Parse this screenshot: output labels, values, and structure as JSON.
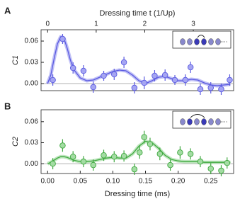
{
  "chart_data": [
    {
      "type": "scatter",
      "panel_label": "A",
      "ylabel": "C1",
      "x2label": "Dressing time t (1/Up)",
      "color": "#5a5ae0",
      "fill": "#a5a5f2",
      "x": [
        0.008,
        0.023,
        0.039,
        0.055,
        0.07,
        0.086,
        0.102,
        0.117,
        0.133,
        0.148,
        0.164,
        0.18,
        0.195,
        0.211,
        0.219,
        0.234,
        0.25,
        0.266,
        0.279
      ],
      "values": [
        0.005,
        0.063,
        0.022,
        0.018,
        -0.005,
        0.011,
        0.013,
        0.03,
        -0.006,
        0.001,
        0.011,
        0.012,
        0.005,
        0.005,
        0.023,
        -0.008,
        -0.006,
        -0.008,
        0.005
      ],
      "errors": [
        0.008,
        0.007,
        0.008,
        0.008,
        0.008,
        0.007,
        0.008,
        0.008,
        0.008,
        0.009,
        0.008,
        0.008,
        0.007,
        0.008,
        0.008,
        0.008,
        0.008,
        0.008,
        0.008
      ],
      "fit_x": [
        0,
        0.005,
        0.01,
        0.015,
        0.02,
        0.025,
        0.03,
        0.035,
        0.04,
        0.05,
        0.06,
        0.07,
        0.08,
        0.09,
        0.1,
        0.11,
        0.12,
        0.13,
        0.14,
        0.15,
        0.16,
        0.17,
        0.18,
        0.19,
        0.2,
        0.21,
        0.22,
        0.23,
        0.24,
        0.25,
        0.26,
        0.27,
        0.28
      ],
      "fit_y": [
        0,
        0.012,
        0.035,
        0.056,
        0.066,
        0.064,
        0.05,
        0.033,
        0.02,
        0.008,
        0.004,
        0.005,
        0.009,
        0.013,
        0.017,
        0.019,
        0.018,
        0.012,
        0.004,
        0.0,
        0.004,
        0.009,
        0.01,
        0.007,
        0.004,
        0.004,
        0.006,
        0.005,
        0.001,
        -0.002,
        -0.003,
        -0.002,
        -0.001
      ],
      "xlim": [
        -0.01,
        0.285
      ],
      "ylim": [
        -0.01,
        0.076
      ],
      "yticks": [
        {
          "value": 0,
          "label": "0.00"
        },
        {
          "value": 0.03,
          "label": "0.03"
        },
        {
          "value": 0.06,
          "label": "0.06"
        }
      ],
      "x2lim": [
        -0.135,
        3.83
      ],
      "x2ticks": [
        0,
        1,
        2,
        3
      ]
    },
    {
      "type": "scatter",
      "panel_label": "B",
      "ylabel": "C2",
      "xlabel": "Dressing time (ms)",
      "color": "#3fa83f",
      "fill": "#a3dca3",
      "x": [
        0.008,
        0.023,
        0.039,
        0.055,
        0.07,
        0.086,
        0.102,
        0.117,
        0.133,
        0.141,
        0.148,
        0.157,
        0.172,
        0.188,
        0.203,
        0.219,
        0.234,
        0.25,
        0.266,
        0.275
      ],
      "values": [
        0.0,
        0.026,
        0.01,
        0.003,
        -0.002,
        0.012,
        0.01,
        0.011,
        -0.008,
        0.016,
        0.038,
        0.028,
        0.014,
        -0.002,
        0.016,
        0.014,
        0.003,
        -0.007,
        -0.01,
        0.001
      ],
      "errors": [
        0.008,
        0.009,
        0.008,
        0.008,
        0.008,
        0.008,
        0.008,
        0.008,
        0.008,
        0.009,
        0.009,
        0.009,
        0.009,
        0.008,
        0.009,
        0.008,
        0.008,
        0.008,
        0.008,
        0.008
      ],
      "fit_x": [
        0,
        0.005,
        0.01,
        0.015,
        0.02,
        0.025,
        0.03,
        0.035,
        0.04,
        0.05,
        0.06,
        0.07,
        0.08,
        0.09,
        0.1,
        0.11,
        0.12,
        0.13,
        0.14,
        0.15,
        0.16,
        0.17,
        0.18,
        0.19,
        0.2,
        0.21,
        0.22,
        0.23,
        0.24,
        0.25,
        0.26,
        0.27,
        0.28
      ],
      "fit_y": [
        0,
        0.002,
        0.005,
        0.008,
        0.01,
        0.01,
        0.009,
        0.007,
        0.005,
        0.003,
        0.003,
        0.004,
        0.006,
        0.008,
        0.009,
        0.008,
        0.008,
        0.014,
        0.025,
        0.032,
        0.03,
        0.022,
        0.012,
        0.006,
        0.004,
        0.003,
        0.003,
        0.003,
        0.002,
        0.002,
        0.002,
        0.002,
        0.002
      ],
      "xlim": [
        -0.01,
        0.285
      ],
      "ylim": [
        -0.014,
        0.077
      ],
      "xticks": [
        {
          "value": 0,
          "label": "0.00"
        },
        {
          "value": 0.05,
          "label": "0.05"
        },
        {
          "value": 0.1,
          "label": "0.10"
        },
        {
          "value": 0.15,
          "label": "0.15"
        },
        {
          "value": 0.2,
          "label": "0.20"
        },
        {
          "value": 0.25,
          "label": "0.25"
        }
      ],
      "yticks": [
        {
          "value": 0,
          "label": "0.00"
        },
        {
          "value": 0.03,
          "label": "0.03"
        },
        {
          "value": 0.06,
          "label": "0.06"
        }
      ]
    }
  ]
}
